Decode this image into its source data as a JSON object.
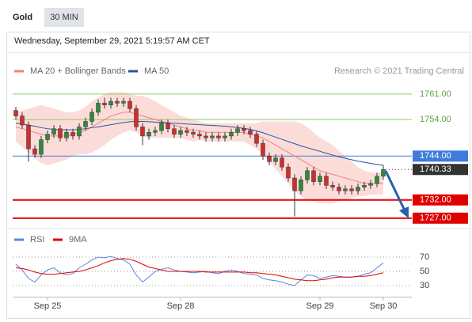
{
  "header": {
    "symbol": "Gold",
    "interval": "30 MIN",
    "timestamp": "Wednesday, September 29, 2021 5:19:57 AM CET",
    "credit": "Research © 2021 Trading Central"
  },
  "chart_data": [
    {
      "type": "candlestick",
      "categories": [
        null,
        null,
        null,
        null,
        null,
        "Sep 25",
        null,
        null,
        null,
        null,
        null,
        null,
        null,
        null,
        null,
        null,
        null,
        null,
        null,
        null,
        null,
        null,
        null,
        null,
        null,
        null,
        "Sep 28",
        null,
        null,
        null,
        null,
        null,
        null,
        null,
        null,
        null,
        null,
        null,
        null,
        null,
        null,
        null,
        null,
        null,
        null,
        null,
        null,
        null,
        "Sep 29",
        null,
        null,
        null,
        null,
        null,
        null,
        null,
        null,
        null,
        "Sep 30"
      ],
      "open": [
        1756.5,
        1755.0,
        1752.5,
        1746.0,
        1744.5,
        1748.5,
        1750.0,
        1751.5,
        1749.0,
        1750.5,
        1749.5,
        1752.0,
        1753.5,
        1756.0,
        1758.5,
        1758.0,
        1759.0,
        1758.5,
        1759.0,
        1757.0,
        1752.0,
        1749.5,
        1750.5,
        1751.0,
        1753.0,
        1751.5,
        1750.0,
        1751.0,
        1750.5,
        1750.0,
        1749.5,
        1749.0,
        1749.5,
        1749.0,
        1749.5,
        1750.5,
        1751.5,
        1751.0,
        1750.0,
        1747.5,
        1744.0,
        1742.5,
        1743.5,
        1741.0,
        1738.0,
        1734.5,
        1737.5,
        1740.0,
        1737.0,
        1738.5,
        1736.0,
        1735.5,
        1734.5,
        1735.0,
        1734.5,
        1735.5,
        1736.0,
        1736.5,
        1738.5
      ],
      "high": [
        1757.5,
        1756,
        1753.5,
        1747,
        1749.5,
        1751,
        1752.5,
        1752.5,
        1751.5,
        1751.5,
        1753,
        1754.5,
        1757,
        1759.5,
        1760,
        1760,
        1760,
        1760,
        1760,
        1758,
        1753,
        1751.5,
        1752,
        1754,
        1754,
        1752.5,
        1752,
        1752,
        1751.5,
        1751,
        1750.5,
        1750.5,
        1750.5,
        1750.5,
        1751.5,
        1752.5,
        1752.5,
        1752,
        1751,
        1748.5,
        1745,
        1744.5,
        1744.5,
        1742,
        1739,
        1738.5,
        1741,
        1741,
        1739.5,
        1739.5,
        1737,
        1736.5,
        1736,
        1736,
        1736.5,
        1737,
        1737.5,
        1739.5,
        1741.5
      ],
      "low": [
        1754,
        1751.5,
        1742.5,
        1743.5,
        1743.5,
        1747.5,
        1749,
        1748,
        1748,
        1748.5,
        1748.5,
        1751,
        1752.5,
        1755,
        1757,
        1757,
        1757.5,
        1757.5,
        1756,
        1751,
        1747,
        1748.5,
        1749.5,
        1750,
        1750.5,
        1749,
        1749,
        1749.5,
        1749,
        1748.5,
        1748,
        1748,
        1748,
        1748,
        1748.5,
        1749.5,
        1750,
        1749,
        1746.5,
        1743,
        1741.5,
        1741.5,
        1740,
        1737,
        1727.5,
        1733.5,
        1736.5,
        1736,
        1736,
        1735,
        1734.5,
        1733.5,
        1733.5,
        1733.5,
        1733.5,
        1734.5,
        1735,
        1735.5,
        1737.5
      ],
      "close": [
        1755.0,
        1752.5,
        1746.0,
        1744.5,
        1748.5,
        1750.0,
        1751.5,
        1749.0,
        1750.5,
        1749.5,
        1752.0,
        1753.5,
        1756.0,
        1758.5,
        1758.0,
        1759.0,
        1758.5,
        1759.0,
        1757.0,
        1752.0,
        1749.5,
        1750.5,
        1751.0,
        1753.0,
        1751.5,
        1750.0,
        1751.0,
        1750.5,
        1750.0,
        1749.5,
        1749.0,
        1749.5,
        1749.0,
        1749.5,
        1750.5,
        1751.5,
        1751.0,
        1750.0,
        1747.5,
        1744.0,
        1742.5,
        1743.5,
        1741.0,
        1738.0,
        1734.5,
        1737.5,
        1740.0,
        1737.0,
        1738.5,
        1736.0,
        1735.5,
        1734.5,
        1735.0,
        1734.5,
        1735.5,
        1736.0,
        1736.5,
        1738.5,
        1740.33
      ],
      "up_color": "#2e8b3e",
      "down_color": "#d12d2d",
      "series": [
        {
          "name": "MA 20 + Bollinger Bands",
          "color": "#f08080",
          "band_color": "#fbd0cc",
          "values": [
            1752,
            1751.5,
            1751,
            1750.5,
            1750,
            1749.5,
            1749.5,
            1749.5,
            1749.5,
            1750,
            1750.5,
            1751,
            1752,
            1753,
            1754,
            1755,
            1755.5,
            1756,
            1756,
            1755.5,
            1755,
            1754.5,
            1754,
            1753.5,
            1753,
            1752.5,
            1752,
            1751.5,
            1751,
            1751,
            1750.5,
            1750.5,
            1750.5,
            1750.5,
            1750.5,
            1750.5,
            1750.5,
            1750,
            1749.5,
            1749,
            1748,
            1747,
            1746,
            1745,
            1744,
            1743,
            1742,
            1741,
            1740,
            1739.5,
            1739,
            1738.5,
            1738,
            1737.5,
            1737,
            1736.5,
            1736.5,
            1736.5,
            1736.5
          ],
          "upper": [
            1756,
            1756.5,
            1757,
            1757.5,
            1758,
            1757.5,
            1757,
            1756.5,
            1756,
            1756,
            1756.5,
            1757.5,
            1759,
            1760,
            1761,
            1761.5,
            1761.5,
            1761.5,
            1761,
            1760.5,
            1760.5,
            1760,
            1759,
            1758,
            1757,
            1756,
            1755,
            1754.5,
            1754,
            1753.5,
            1753,
            1753,
            1753,
            1753,
            1753,
            1753,
            1753,
            1753,
            1753,
            1753.5,
            1753.5,
            1753.5,
            1753.5,
            1753.5,
            1753.5,
            1753,
            1752,
            1750.5,
            1749,
            1748,
            1747,
            1745.5,
            1744,
            1742.5,
            1741,
            1740,
            1739.5,
            1739.5,
            1739.5
          ],
          "lower": [
            1748,
            1746.5,
            1745,
            1743.5,
            1742,
            1741.5,
            1742,
            1742.5,
            1743,
            1744,
            1744.5,
            1744.5,
            1745,
            1746,
            1747,
            1748.5,
            1749.5,
            1750.5,
            1751,
            1750.5,
            1749.5,
            1749,
            1749,
            1749,
            1749,
            1749,
            1749,
            1748.5,
            1748,
            1748.5,
            1748,
            1748,
            1748,
            1748,
            1748,
            1748,
            1748,
            1747,
            1746,
            1744.5,
            1742.5,
            1740.5,
            1738.5,
            1736.5,
            1734.5,
            1733,
            1732,
            1731.5,
            1731,
            1731,
            1731,
            1731.5,
            1732,
            1732.5,
            1733,
            1733,
            1733.5,
            1733.5,
            1733.5
          ]
        },
        {
          "name": "MA 50",
          "color": "#2a5599",
          "values": [
            1753,
            1752.8,
            1752.5,
            1752.2,
            1751.8,
            1751.5,
            1751.3,
            1751.2,
            1751.2,
            1751.2,
            1751.3,
            1751.5,
            1751.8,
            1752,
            1752.3,
            1752.6,
            1752.9,
            1753.2,
            1753.4,
            1753.5,
            1753.5,
            1753.4,
            1753.3,
            1753.2,
            1753.1,
            1753,
            1752.9,
            1752.8,
            1752.7,
            1752.6,
            1752.5,
            1752.4,
            1752.3,
            1752.2,
            1752,
            1751.8,
            1751.6,
            1751.3,
            1750.9,
            1750.4,
            1749.8,
            1749.2,
            1748.6,
            1748,
            1747.4,
            1746.8,
            1746.3,
            1745.8,
            1745.3,
            1744.8,
            1744.3,
            1743.8,
            1743.4,
            1743,
            1742.6,
            1742.3,
            1742,
            1741.7,
            1741.5
          ]
        }
      ],
      "ylim": [
        1725,
        1764
      ],
      "levels": [
        {
          "value": 1761,
          "label": "1761.00",
          "color": "#8ccc66",
          "boxed": false
        },
        {
          "value": 1754,
          "label": "1754.00",
          "color": "#8ccc66",
          "boxed": false
        },
        {
          "value": 1744,
          "label": "1744.00",
          "color": "#3f7bdc",
          "boxed": true
        },
        {
          "value": 1732,
          "label": "1732.00",
          "color": "#e00000",
          "boxed": true
        },
        {
          "value": 1727,
          "label": "1727.00",
          "color": "#e00000",
          "boxed": true
        }
      ]
    },
    {
      "type": "line",
      "series": [
        {
          "name": "RSI",
          "color": "#5b84dc",
          "values": [
            60,
            52,
            40,
            35,
            45,
            52,
            55,
            48,
            45,
            47,
            55,
            60,
            66,
            70,
            69,
            71,
            68,
            66,
            60,
            45,
            35,
            42,
            50,
            53,
            55,
            52,
            50,
            49,
            48,
            49,
            50,
            48,
            47,
            50,
            52,
            50,
            47,
            46,
            45,
            40,
            38,
            37,
            35,
            32,
            30,
            38,
            45,
            44,
            40,
            42,
            44,
            43,
            42,
            42,
            43,
            46,
            48,
            55,
            62
          ]
        },
        {
          "name": "9MA",
          "color": "#e00000",
          "values": [
            55,
            54,
            52,
            49,
            47,
            46,
            46,
            47,
            48,
            49,
            50,
            52,
            55,
            58,
            62,
            65,
            67,
            68,
            67,
            64,
            60,
            56,
            54,
            52,
            50,
            50,
            50,
            50,
            50,
            50,
            49,
            49,
            49,
            49,
            49,
            49,
            49,
            48,
            48,
            47,
            46,
            45,
            43,
            41,
            39,
            38,
            37,
            37,
            38,
            39,
            41,
            42,
            42,
            42,
            43,
            43,
            44,
            46,
            48
          ]
        }
      ],
      "ylim": [
        20,
        80
      ],
      "yticks": [
        30,
        50,
        70
      ]
    }
  ]
}
